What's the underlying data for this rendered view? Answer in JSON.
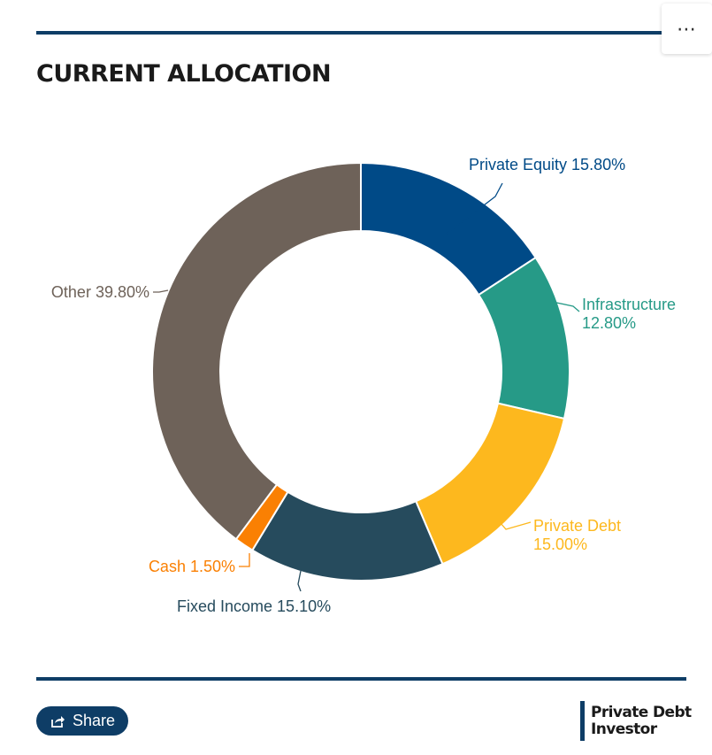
{
  "header": {
    "title": "CURRENT ALLOCATION",
    "menu_label": "⋯"
  },
  "footer": {
    "share_label": "Share",
    "brand_line1": "Private Debt",
    "brand_line2": "Investor"
  },
  "colors": {
    "accent": "#0e3d66"
  },
  "chart_data": {
    "type": "pie",
    "title": "",
    "slices": [
      {
        "name": "Private Equity",
        "value": 15.8,
        "label": "15.80%",
        "color": "#004a87"
      },
      {
        "name": "Infrastructure",
        "value": 12.8,
        "label": "12.80%",
        "color": "#269a87"
      },
      {
        "name": "Private Debt",
        "value": 15.0,
        "label": "15.00%",
        "color": "#fdb81e"
      },
      {
        "name": "Fixed Income",
        "value": 15.1,
        "label": "15.10%",
        "color": "#264b5d"
      },
      {
        "name": "Cash",
        "value": 1.5,
        "label": "1.50%",
        "color": "#fa8003"
      },
      {
        "name": "Other",
        "value": 39.8,
        "label": "39.80%",
        "color": "#6e6259"
      }
    ]
  }
}
